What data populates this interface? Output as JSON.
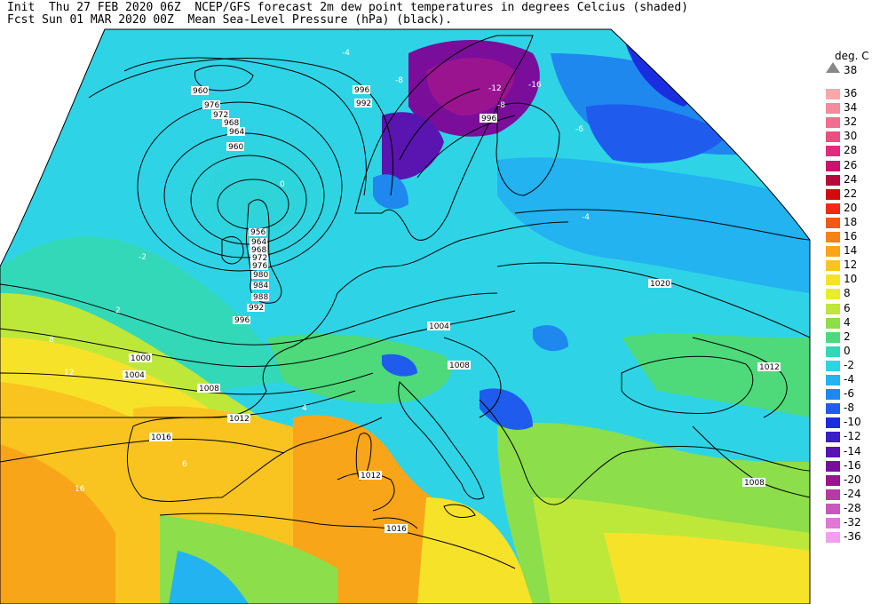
{
  "header": {
    "line1": "Init  Thu 27 FEB 2020 06Z  NCEP/GFS forecast 2m dew point temperatures in degrees Celcius (shaded)",
    "line2": "Fcst Sun 01 MAR 2020 00Z  Mean Sea-Level Pressure (hPa) (black)."
  },
  "colorbar": {
    "unit": "deg. C",
    "top_value": "38",
    "entries": [
      {
        "label": "36",
        "color": "#f7a8a8"
      },
      {
        "label": "34",
        "color": "#f48b9a"
      },
      {
        "label": "32",
        "color": "#f06f8c"
      },
      {
        "label": "30",
        "color": "#eb4f82"
      },
      {
        "label": "28",
        "color": "#e02c7e"
      },
      {
        "label": "26",
        "color": "#c8146e"
      },
      {
        "label": "24",
        "color": "#b40a3c"
      },
      {
        "label": "22",
        "color": "#d40a0a"
      },
      {
        "label": "20",
        "color": "#ee2a10"
      },
      {
        "label": "18",
        "color": "#f25a12"
      },
      {
        "label": "16",
        "color": "#f58215"
      },
      {
        "label": "14",
        "color": "#f8a51a"
      },
      {
        "label": "12",
        "color": "#f9c420"
      },
      {
        "label": "10",
        "color": "#f7e22a"
      },
      {
        "label": "8",
        "color": "#e8ef2a"
      },
      {
        "label": "6",
        "color": "#bde83a"
      },
      {
        "label": "4",
        "color": "#8cde4a"
      },
      {
        "label": "2",
        "color": "#4ed97a"
      },
      {
        "label": "0",
        "color": "#33d8b8"
      },
      {
        "label": "-2",
        "color": "#2ed4e6"
      },
      {
        "label": "-4",
        "color": "#22b3f0"
      },
      {
        "label": "-6",
        "color": "#1e88ee"
      },
      {
        "label": "-8",
        "color": "#1f5cee"
      },
      {
        "label": "-10",
        "color": "#1a2ee0"
      },
      {
        "label": "-12",
        "color": "#3a1ec8"
      },
      {
        "label": "-14",
        "color": "#5a14b0"
      },
      {
        "label": "-16",
        "color": "#7a0e9a"
      },
      {
        "label": "-20",
        "color": "#9a1490"
      },
      {
        "label": "-24",
        "color": "#b43aa8"
      },
      {
        "label": "-28",
        "color": "#c858c0"
      },
      {
        "label": "-32",
        "color": "#dc7ad6"
      },
      {
        "label": "-36",
        "color": "#f0a0ee"
      }
    ]
  },
  "isobar_labels": {
    "low_center": [
      "960",
      "976",
      "972",
      "968",
      "964",
      "960"
    ],
    "south_of_low": [
      "956",
      "964",
      "968",
      "972",
      "976",
      "980",
      "984",
      "988",
      "992",
      "996"
    ],
    "north_sea": [
      "996",
      "992"
    ],
    "scandinavia": [
      "996"
    ],
    "west": [
      "1000",
      "1004",
      "1008",
      "1012",
      "1016"
    ],
    "central": [
      "1004",
      "1008"
    ],
    "east": [
      "1020",
      "1012",
      "1008"
    ],
    "mediterranean": [
      "1012",
      "1016"
    ]
  },
  "dewpoint_labels": [
    "-4",
    "-8",
    "-12",
    "-16",
    "-8",
    "-4",
    "0",
    "2",
    "4",
    "6",
    "8",
    "12",
    "16",
    "-2",
    "-6"
  ]
}
